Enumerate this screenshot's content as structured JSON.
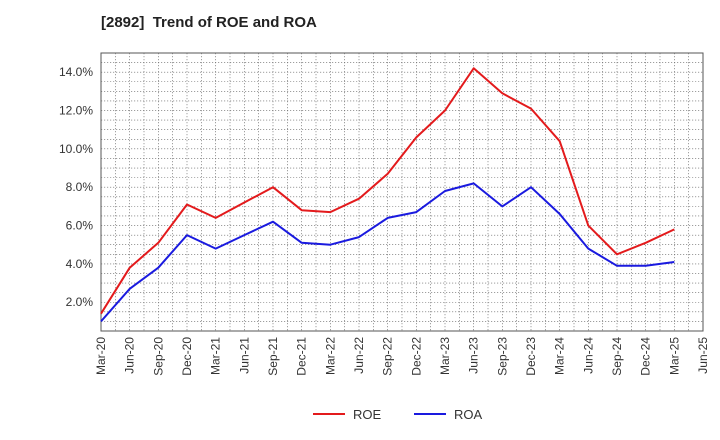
{
  "chart_data": {
    "type": "line",
    "title": "[2892]  Trend of ROE and ROA",
    "x": [
      "Mar-20",
      "Jun-20",
      "Sep-20",
      "Dec-20",
      "Mar-21",
      "Jun-21",
      "Sep-21",
      "Dec-21",
      "Mar-22",
      "Jun-22",
      "Sep-22",
      "Dec-22",
      "Mar-23",
      "Jun-23",
      "Sep-23",
      "Dec-23",
      "Mar-24",
      "Jun-24",
      "Sep-24",
      "Dec-24",
      "Mar-25"
    ],
    "x_ticks": [
      "Mar-20",
      "Jun-20",
      "Sep-20",
      "Dec-20",
      "Mar-21",
      "Jun-21",
      "Sep-21",
      "Dec-21",
      "Mar-22",
      "Jun-22",
      "Sep-22",
      "Dec-22",
      "Mar-23",
      "Jun-23",
      "Sep-23",
      "Dec-23",
      "Mar-24",
      "Jun-24",
      "Sep-24",
      "Dec-24",
      "Mar-25",
      "Jun-25"
    ],
    "y_ticks": [
      "2.0%",
      "4.0%",
      "6.0%",
      "8.0%",
      "10.0%",
      "12.0%",
      "14.0%"
    ],
    "y_tick_values": [
      2,
      4,
      6,
      8,
      10,
      12,
      14
    ],
    "ylim": [
      0.5,
      15
    ],
    "grid": true,
    "legend_position": "bottom",
    "series": [
      {
        "name": "ROE",
        "color": "#e31a1c",
        "values": [
          1.4,
          3.8,
          5.1,
          7.1,
          6.4,
          7.2,
          8.0,
          6.8,
          6.7,
          7.4,
          8.7,
          10.6,
          12.0,
          14.2,
          12.9,
          12.1,
          10.4,
          6.0,
          4.5,
          5.1,
          5.8
        ]
      },
      {
        "name": "ROA",
        "color": "#1a1adf",
        "values": [
          1.0,
          2.7,
          3.8,
          5.5,
          4.8,
          5.5,
          6.2,
          5.1,
          5.0,
          5.4,
          6.4,
          6.7,
          7.8,
          8.2,
          7.0,
          8.0,
          6.6,
          4.8,
          3.9,
          3.9,
          4.1
        ]
      }
    ]
  }
}
